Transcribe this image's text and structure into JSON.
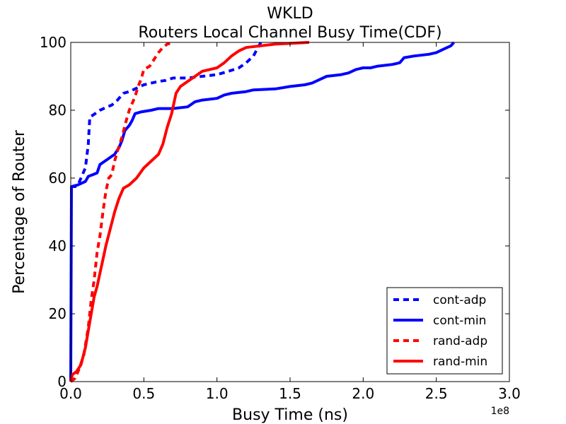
{
  "chart_data": {
    "type": "line",
    "title": "WKLD",
    "subtitle": "Routers Local Channel Busy Time(CDF)",
    "xlabel": "Busy Time (ns)",
    "ylabel": "Percentage of Router",
    "x_exponent_label": "1e8",
    "xlim": [
      0,
      3.0
    ],
    "ylim": [
      0,
      100
    ],
    "x_ticks": [
      "0.0",
      "0.5",
      "1.0",
      "1.5",
      "2.0",
      "2.5",
      "3.0"
    ],
    "x_tick_values": [
      0,
      0.5,
      1.0,
      1.5,
      2.0,
      2.5,
      3.0
    ],
    "y_ticks": [
      "0",
      "20",
      "40",
      "60",
      "80",
      "100"
    ],
    "y_tick_values": [
      0,
      20,
      40,
      60,
      80,
      100
    ],
    "grid": false,
    "legend_position": "bottom-right",
    "series": [
      {
        "name": "cont-adp",
        "color": "#0000ff",
        "style": "dashed",
        "points": [
          [
            0,
            57.5
          ],
          [
            0.03,
            57.5
          ],
          [
            0.05,
            58
          ],
          [
            0.08,
            61
          ],
          [
            0.1,
            63
          ],
          [
            0.12,
            70
          ],
          [
            0.13,
            78
          ],
          [
            0.15,
            78.5
          ],
          [
            0.2,
            80
          ],
          [
            0.25,
            81
          ],
          [
            0.28,
            81.5
          ],
          [
            0.32,
            83
          ],
          [
            0.36,
            85
          ],
          [
            0.4,
            85.5
          ],
          [
            0.45,
            86.5
          ],
          [
            0.5,
            87.5
          ],
          [
            0.55,
            88
          ],
          [
            0.6,
            88.5
          ],
          [
            0.65,
            88.8
          ],
          [
            0.7,
            89.5
          ],
          [
            0.8,
            89.5
          ],
          [
            0.9,
            90
          ],
          [
            1.0,
            90.5
          ],
          [
            1.08,
            91.5
          ],
          [
            1.15,
            92.5
          ],
          [
            1.2,
            94
          ],
          [
            1.25,
            96
          ],
          [
            1.28,
            98.5
          ],
          [
            1.3,
            100
          ]
        ]
      },
      {
        "name": "cont-min",
        "color": "#0000ff",
        "style": "solid",
        "points": [
          [
            0,
            0
          ],
          [
            0.005,
            57.5
          ],
          [
            0.05,
            58
          ],
          [
            0.1,
            59
          ],
          [
            0.12,
            60.5
          ],
          [
            0.15,
            61
          ],
          [
            0.18,
            61.5
          ],
          [
            0.2,
            64
          ],
          [
            0.25,
            65.5
          ],
          [
            0.3,
            67
          ],
          [
            0.33,
            69
          ],
          [
            0.35,
            71
          ],
          [
            0.37,
            74
          ],
          [
            0.4,
            75.5
          ],
          [
            0.42,
            77
          ],
          [
            0.44,
            79
          ],
          [
            0.48,
            79.5
          ],
          [
            0.55,
            80
          ],
          [
            0.6,
            80.5
          ],
          [
            0.7,
            80.5
          ],
          [
            0.8,
            81
          ],
          [
            0.85,
            82.5
          ],
          [
            0.9,
            83
          ],
          [
            1.0,
            83.5
          ],
          [
            1.05,
            84.5
          ],
          [
            1.1,
            85
          ],
          [
            1.2,
            85.5
          ],
          [
            1.25,
            86
          ],
          [
            1.4,
            86.3
          ],
          [
            1.5,
            87
          ],
          [
            1.6,
            87.5
          ],
          [
            1.65,
            88
          ],
          [
            1.7,
            89
          ],
          [
            1.75,
            90
          ],
          [
            1.85,
            90.5
          ],
          [
            1.9,
            91
          ],
          [
            1.95,
            92
          ],
          [
            2.0,
            92.5
          ],
          [
            2.05,
            92.5
          ],
          [
            2.1,
            93
          ],
          [
            2.2,
            93.5
          ],
          [
            2.25,
            94
          ],
          [
            2.28,
            95.5
          ],
          [
            2.35,
            96
          ],
          [
            2.45,
            96.5
          ],
          [
            2.5,
            97
          ],
          [
            2.55,
            98
          ],
          [
            2.6,
            99
          ],
          [
            2.62,
            100
          ]
        ]
      },
      {
        "name": "rand-adp",
        "color": "#ff0000",
        "style": "dashed",
        "points": [
          [
            0,
            0
          ],
          [
            0.03,
            1
          ],
          [
            0.06,
            4
          ],
          [
            0.09,
            8
          ],
          [
            0.12,
            16
          ],
          [
            0.14,
            24
          ],
          [
            0.16,
            30
          ],
          [
            0.18,
            38
          ],
          [
            0.2,
            43
          ],
          [
            0.22,
            50
          ],
          [
            0.24,
            56
          ],
          [
            0.26,
            60
          ],
          [
            0.28,
            61
          ],
          [
            0.3,
            65
          ],
          [
            0.32,
            68
          ],
          [
            0.35,
            72
          ],
          [
            0.38,
            77
          ],
          [
            0.4,
            80
          ],
          [
            0.42,
            82
          ],
          [
            0.44,
            84
          ],
          [
            0.46,
            87
          ],
          [
            0.48,
            89
          ],
          [
            0.5,
            92
          ],
          [
            0.54,
            93
          ],
          [
            0.57,
            95
          ],
          [
            0.6,
            97
          ],
          [
            0.63,
            98.5
          ],
          [
            0.66,
            99.5
          ],
          [
            0.7,
            100
          ]
        ]
      },
      {
        "name": "rand-min",
        "color": "#ff0000",
        "style": "solid",
        "points": [
          [
            0,
            0
          ],
          [
            0.01,
            2
          ],
          [
            0.04,
            3
          ],
          [
            0.07,
            5
          ],
          [
            0.1,
            10
          ],
          [
            0.12,
            15
          ],
          [
            0.14,
            20
          ],
          [
            0.16,
            25
          ],
          [
            0.18,
            28
          ],
          [
            0.2,
            32
          ],
          [
            0.22,
            36
          ],
          [
            0.24,
            40
          ],
          [
            0.27,
            45
          ],
          [
            0.3,
            50
          ],
          [
            0.33,
            54
          ],
          [
            0.36,
            57
          ],
          [
            0.4,
            58
          ],
          [
            0.45,
            60
          ],
          [
            0.5,
            63
          ],
          [
            0.55,
            65
          ],
          [
            0.6,
            67
          ],
          [
            0.63,
            70
          ],
          [
            0.66,
            75
          ],
          [
            0.69,
            79
          ],
          [
            0.72,
            85
          ],
          [
            0.75,
            87
          ],
          [
            0.8,
            88.5
          ],
          [
            0.85,
            90
          ],
          [
            0.9,
            91.5
          ],
          [
            1.0,
            92.5
          ],
          [
            1.05,
            94
          ],
          [
            1.1,
            96
          ],
          [
            1.15,
            97.5
          ],
          [
            1.2,
            98.5
          ],
          [
            1.3,
            99
          ],
          [
            1.4,
            99.5
          ],
          [
            1.5,
            99.7
          ],
          [
            1.63,
            100
          ]
        ]
      }
    ]
  }
}
